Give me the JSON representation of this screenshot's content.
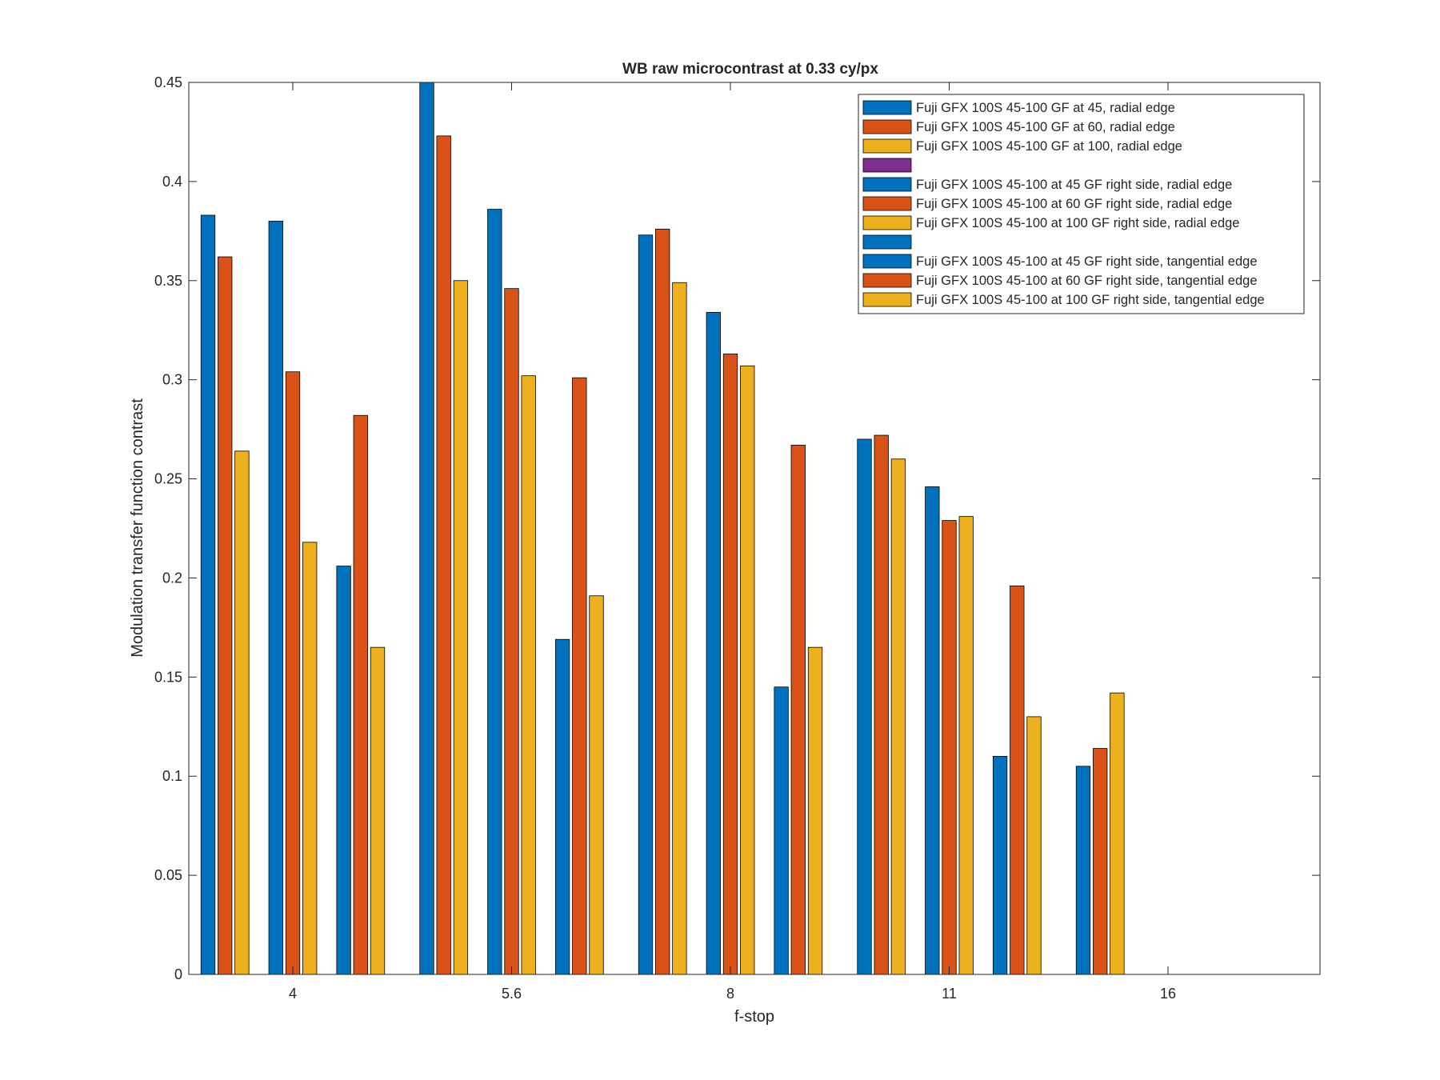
{
  "chart_data": {
    "type": "bar",
    "title": "WB raw  microcontrast at 0.33 cy/px",
    "xlabel": "f-stop",
    "ylabel": "Modulation transfer function contrast",
    "ylim": [
      0,
      0.45
    ],
    "yticks": [
      "0",
      "0.05",
      "0.1",
      "0.15",
      "0.2",
      "0.25",
      "0.3",
      "0.35",
      "0.4",
      "0.45"
    ],
    "categories": [
      "4",
      "5.6",
      "8",
      "11",
      "16"
    ],
    "grid": false,
    "legend_position": "top-right",
    "series": [
      {
        "name": "Fuji GFX 100S 45-100 GF at 45, radial edge",
        "color": "#0072BD",
        "values": [
          0.383,
          0.45,
          0.373,
          0.27,
          0.105
        ]
      },
      {
        "name": "Fuji GFX 100S 45-100 GF at 60, radial edge",
        "color": "#D95319",
        "values": [
          0.362,
          0.423,
          0.376,
          0.272,
          0.114
        ]
      },
      {
        "name": "Fuji GFX 100S 45-100 GF at 100, radial edge",
        "color": "#EDB120",
        "values": [
          0.264,
          0.35,
          0.349,
          0.26,
          0.142
        ]
      },
      {
        "name": "",
        "color": "#7E2F8E",
        "values": [
          null,
          null,
          null,
          null,
          null
        ]
      },
      {
        "name": "Fuji GFX 100S 45-100 at 45 GF right side, radial edge",
        "color": "#0072BD",
        "values": [
          0.38,
          0.386,
          0.334,
          0.246,
          null
        ]
      },
      {
        "name": "Fuji GFX 100S 45-100 at 60 GF right side, radial edge",
        "color": "#D95319",
        "values": [
          0.304,
          0.346,
          0.313,
          0.229,
          null
        ]
      },
      {
        "name": "Fuji GFX 100S 45-100 at 100 GF right side, radial edge",
        "color": "#EDB120",
        "values": [
          0.218,
          0.302,
          0.307,
          0.231,
          null
        ]
      },
      {
        "name": "",
        "color": "#0072BD",
        "values": [
          null,
          null,
          null,
          null,
          null
        ]
      },
      {
        "name": "Fuji GFX 100S 45-100 at 45 GF right side, tangential edge",
        "color": "#0072BD",
        "values": [
          0.206,
          0.169,
          0.145,
          0.11,
          null
        ]
      },
      {
        "name": "Fuji GFX 100S 45-100 at 60 GF right side, tangential edge",
        "color": "#D95319",
        "values": [
          0.282,
          0.301,
          0.267,
          0.196,
          null
        ]
      },
      {
        "name": "Fuji GFX 100S 45-100 at 100 GF right side, tangential edge",
        "color": "#EDB120",
        "values": [
          0.165,
          0.191,
          0.165,
          0.13,
          null
        ]
      }
    ]
  }
}
